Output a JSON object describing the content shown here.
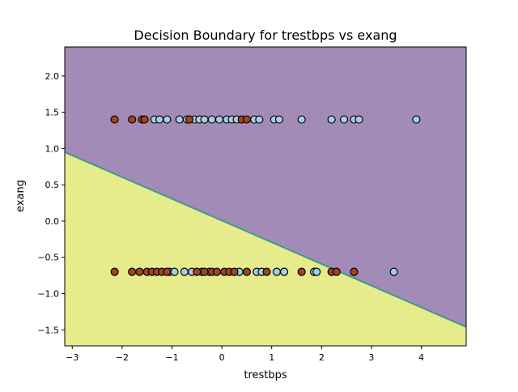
{
  "chart_data": {
    "type": "scatter",
    "title": "Decision Boundary for trestbps vs exang",
    "xlabel": "trestbps",
    "ylabel": "exang",
    "xlim": [
      -3.15,
      4.9
    ],
    "ylim": [
      -1.72,
      2.4
    ],
    "xticks": [
      -3,
      -2,
      -1,
      0,
      1,
      2,
      3,
      4
    ],
    "xtick_labels": [
      "−3",
      "−2",
      "−1",
      "0",
      "1",
      "2",
      "3",
      "4"
    ],
    "yticks": [
      -1.5,
      -1.0,
      -0.5,
      0.0,
      0.5,
      1.0,
      1.5,
      2.0
    ],
    "ytick_labels": [
      "−1.5",
      "−1.0",
      "−0.5",
      "0.0",
      "0.5",
      "1.0",
      "1.5",
      "2.0"
    ],
    "grid": false,
    "regions": {
      "upper_color": "#a28bb6",
      "lower_color": "#e6ec8c",
      "boundary_color": "#3f9a8c",
      "boundary": [
        [
          -3.15,
          0.95
        ],
        [
          4.9,
          -1.46
        ]
      ]
    },
    "series": [
      {
        "color": "#a6cde3",
        "points": [
          [
            -1.35,
            1.4
          ],
          [
            -1.25,
            1.4
          ],
          [
            -1.1,
            1.4
          ],
          [
            -0.85,
            1.4
          ],
          [
            -0.7,
            1.4
          ],
          [
            -0.55,
            1.4
          ],
          [
            -0.45,
            1.4
          ],
          [
            -0.35,
            1.4
          ],
          [
            -0.2,
            1.4
          ],
          [
            -0.05,
            1.4
          ],
          [
            0.1,
            1.4
          ],
          [
            0.2,
            1.4
          ],
          [
            0.3,
            1.4
          ],
          [
            0.65,
            1.4
          ],
          [
            0.75,
            1.4
          ],
          [
            1.05,
            1.4
          ],
          [
            1.15,
            1.4
          ],
          [
            1.6,
            1.4
          ],
          [
            2.2,
            1.4
          ],
          [
            2.45,
            1.4
          ],
          [
            2.65,
            1.4
          ],
          [
            2.75,
            1.4
          ],
          [
            3.9,
            1.4
          ],
          [
            -1.05,
            -0.7
          ],
          [
            -0.95,
            -0.7
          ],
          [
            -0.75,
            -0.7
          ],
          [
            -0.6,
            -0.7
          ],
          [
            -0.4,
            -0.7
          ],
          [
            -0.25,
            -0.7
          ],
          [
            0.35,
            -0.7
          ],
          [
            0.7,
            -0.7
          ],
          [
            0.8,
            -0.7
          ],
          [
            1.1,
            -0.7
          ],
          [
            1.25,
            -0.7
          ],
          [
            1.85,
            -0.7
          ],
          [
            1.9,
            -0.7
          ],
          [
            3.45,
            -0.7
          ]
        ]
      },
      {
        "color": "#a0451d",
        "points": [
          [
            -2.15,
            1.4
          ],
          [
            -1.8,
            1.4
          ],
          [
            -1.6,
            1.4
          ],
          [
            -1.55,
            1.4
          ],
          [
            -0.65,
            1.4
          ],
          [
            0.4,
            1.4
          ],
          [
            0.5,
            1.4
          ],
          [
            -2.15,
            -0.7
          ],
          [
            -1.8,
            -0.7
          ],
          [
            -1.65,
            -0.7
          ],
          [
            -1.5,
            -0.7
          ],
          [
            -1.4,
            -0.7
          ],
          [
            -1.3,
            -0.7
          ],
          [
            -1.2,
            -0.7
          ],
          [
            -1.1,
            -0.7
          ],
          [
            -0.5,
            -0.7
          ],
          [
            -0.35,
            -0.7
          ],
          [
            -0.2,
            -0.7
          ],
          [
            -0.1,
            -0.7
          ],
          [
            0.05,
            -0.7
          ],
          [
            0.15,
            -0.7
          ],
          [
            0.25,
            -0.7
          ],
          [
            0.5,
            -0.7
          ],
          [
            0.9,
            -0.7
          ],
          [
            1.6,
            -0.7
          ],
          [
            2.2,
            -0.7
          ],
          [
            2.3,
            -0.7
          ],
          [
            2.65,
            -0.7
          ]
        ]
      }
    ]
  }
}
